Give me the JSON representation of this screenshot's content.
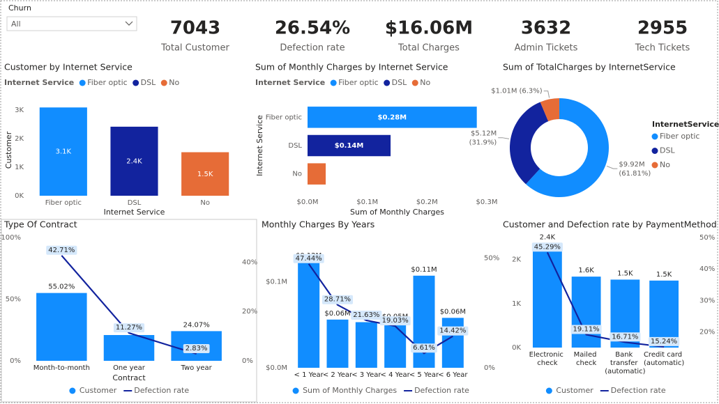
{
  "slicer": {
    "title": "Churn",
    "value": "All"
  },
  "cards": [
    {
      "value": "7043",
      "label": "Total Customer"
    },
    {
      "value": "26.54%",
      "label": "Defection rate"
    },
    {
      "value": "$16.06M",
      "label": "Total Charges"
    },
    {
      "value": "3632",
      "label": "Admin Tickets"
    },
    {
      "value": "2955",
      "label": "Tech Tickets"
    }
  ],
  "chart_data": [
    {
      "type": "bar",
      "title": "Customer by Internet Service",
      "legend_title": "Internet Service",
      "categories": [
        "Fiber optic",
        "DSL",
        "No"
      ],
      "colors": [
        "#118DFF",
        "#12239E",
        "#E66C37"
      ],
      "values": [
        3096,
        2421,
        1526
      ],
      "value_labels": [
        "3.1K",
        "2.4K",
        "1.5K"
      ],
      "ylim": [
        0,
        3200
      ],
      "yticks": [
        {
          "value": 0,
          "label": "0K"
        },
        {
          "value": 1000,
          "label": "1K"
        },
        {
          "value": 2000,
          "label": "2K"
        },
        {
          "value": 3000,
          "label": "3K"
        }
      ],
      "x_label": "Internet Service",
      "y_label": "Customer"
    },
    {
      "type": "hbar",
      "title": "Sum of Monthly Charges by Internet Service",
      "legend_title": "Internet Service",
      "categories": [
        "Fiber optic",
        "DSL",
        "No"
      ],
      "colors": [
        "#118DFF",
        "#12239E",
        "#E66C37"
      ],
      "values": [
        283300,
        139000,
        30400
      ],
      "value_labels": [
        "$0.28M",
        "$0.14M",
        null
      ],
      "xlim": [
        0,
        300000
      ],
      "xticks": [
        {
          "value": 0,
          "label": "$0.0M"
        },
        {
          "value": 100000,
          "label": "$0.1M"
        },
        {
          "value": 200000,
          "label": "$0.2M"
        },
        {
          "value": 300000,
          "label": "$0.3M"
        }
      ],
      "x_label": "Sum of Monthly Charges",
      "y_label": "Internet Service"
    },
    {
      "type": "donut",
      "title": "Sum of TotalCharges by InternetService",
      "legend_title": "InternetService",
      "categories": [
        "Fiber optic",
        "DSL",
        "No"
      ],
      "colors": [
        "#118DFF",
        "#12239E",
        "#E66C37"
      ],
      "values": [
        9920000,
        5120000,
        1010000
      ],
      "value_labels": [
        "$9.92M",
        "$5.12M",
        "$1.01M"
      ],
      "percent_labels": [
        "(61.81%)",
        "(31.9%)",
        "(6.3%)"
      ]
    },
    {
      "type": "combo",
      "title": "Type Of Contract",
      "x_label": "Contract",
      "categories": [
        "Month-to-month",
        "One year",
        "Two year"
      ],
      "series": [
        {
          "name": "Customer",
          "color": "#118DFF",
          "values": [
            55.02,
            20.91,
            24.07
          ],
          "value_labels": [
            "55.02%",
            "20.91%",
            "24.07%"
          ]
        },
        {
          "name": "Defection rate",
          "color": "#12239E",
          "axis": "y2",
          "values": [
            42.71,
            11.27,
            2.83
          ],
          "value_labels": [
            "42.71%",
            "11.27%",
            "2.83%"
          ]
        }
      ],
      "ylim": [
        0,
        100
      ],
      "yticks": [
        {
          "value": 0,
          "label": "0%"
        },
        {
          "value": 50,
          "label": "50%"
        },
        {
          "value": 100,
          "label": "100%"
        }
      ],
      "y2lim": [
        0,
        50
      ],
      "y2ticks": [
        {
          "value": 0,
          "label": "0%"
        },
        {
          "value": 20,
          "label": "20%"
        },
        {
          "value": 40,
          "label": "40%"
        }
      ]
    },
    {
      "type": "combo",
      "title": "Monthly Charges By Years",
      "categories": [
        "< 1 Year",
        "< 2 Year",
        "< 3 Year",
        "< 4 Year",
        "< 5 Year",
        "< 6 Year"
      ],
      "series": [
        {
          "name": "Sum of Monthly Charges",
          "color": "#118DFF",
          "values": [
            123000,
            56000,
            53000,
            52000,
            107000,
            58000
          ],
          "value_labels": [
            "$0.12M",
            "$0.06M",
            "$0.05M",
            "$0.05M",
            "$0.11M",
            "$0.06M"
          ]
        },
        {
          "name": "Defection rate",
          "color": "#12239E",
          "axis": "y2",
          "values": [
            47.44,
            28.71,
            21.63,
            19.03,
            6.61,
            14.42
          ],
          "value_labels": [
            "47.44%",
            "28.71%",
            "21.63%",
            "19.03%",
            "6.61%",
            "14.42%"
          ]
        }
      ],
      "ylim": [
        0,
        140000
      ],
      "yticks": [
        {
          "value": 0,
          "label": "$0.0M"
        },
        {
          "value": 100000,
          "label": "$0.1M"
        }
      ],
      "y2lim": [
        0,
        55
      ],
      "y2ticks": [
        {
          "value": 0,
          "label": "0%"
        },
        {
          "value": 50,
          "label": "50%"
        }
      ]
    },
    {
      "type": "combo",
      "title": "Customer and Defection rate by PaymentMethod",
      "categories": [
        "Electronic check",
        "Mailed check",
        "Bank transfer (automatic)",
        "Credit card (automatic)"
      ],
      "series": [
        {
          "name": "Customer",
          "color": "#118DFF",
          "values": [
            2365,
            1612,
            1544,
            1522
          ],
          "value_labels": [
            "2.4K",
            "1.6K",
            "1.5K",
            "1.5K"
          ]
        },
        {
          "name": "Defection rate",
          "color": "#12239E",
          "axis": "y2",
          "values": [
            45.29,
            19.11,
            16.71,
            15.24
          ],
          "value_labels": [
            "45.29%",
            "19.11%",
            "16.71%",
            "15.24%"
          ]
        }
      ],
      "ylim": [
        0,
        2500
      ],
      "yticks": [
        {
          "value": 0,
          "label": "0K"
        },
        {
          "value": 1000,
          "label": "1K"
        },
        {
          "value": 2000,
          "label": "2K"
        }
      ],
      "y2lim": [
        15,
        50
      ],
      "y2ticks": [
        {
          "value": 20,
          "label": "20%"
        },
        {
          "value": 30,
          "label": "30%"
        },
        {
          "value": 40,
          "label": "40%"
        },
        {
          "value": 50,
          "label": "50%"
        }
      ]
    }
  ]
}
